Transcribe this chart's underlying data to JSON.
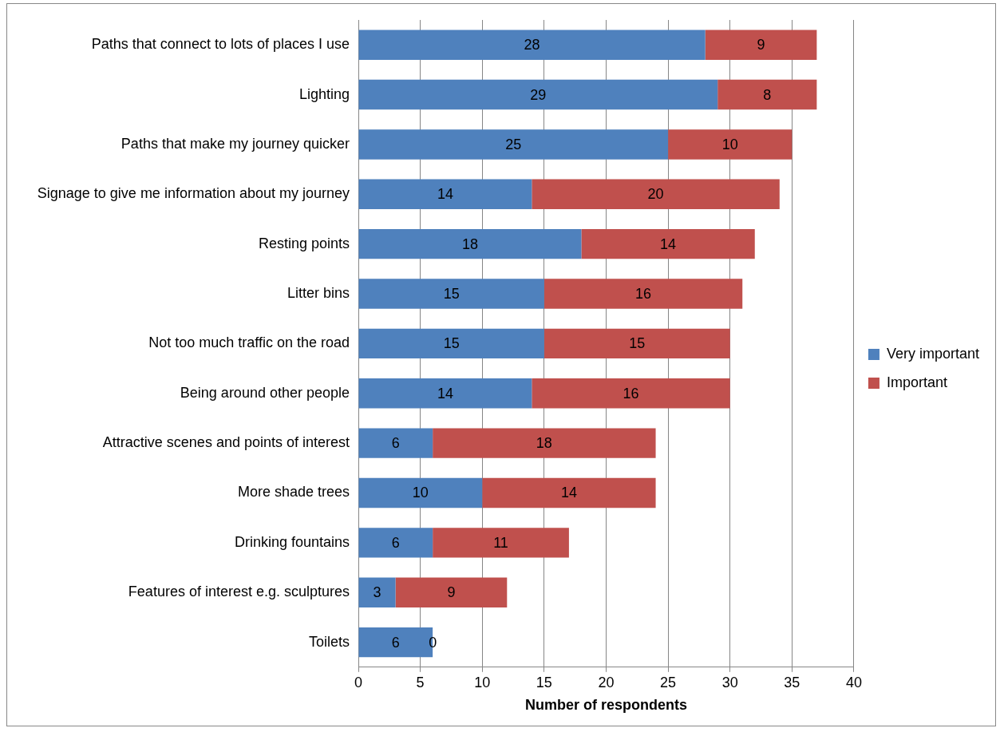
{
  "chart_data": {
    "type": "bar",
    "orientation": "horizontal",
    "stacked": true,
    "xlabel": "Number of respondents",
    "categories": [
      "Paths that connect to lots of places I use",
      "Lighting",
      "Paths that make my journey quicker",
      "Signage to give me information about my journey",
      "Resting points",
      "Litter bins",
      "Not too much traffic on the road",
      "Being around other people",
      "Attractive scenes and points of interest",
      "More shade trees",
      "Drinking fountains",
      "Features of interest e.g. sculptures",
      "Toilets"
    ],
    "series": [
      {
        "name": "Very important",
        "color": "#4f81bd",
        "values": [
          28,
          29,
          25,
          14,
          18,
          15,
          15,
          14,
          6,
          10,
          6,
          3,
          6
        ]
      },
      {
        "name": "Important",
        "color": "#c0504d",
        "values": [
          9,
          8,
          10,
          20,
          14,
          16,
          15,
          16,
          18,
          14,
          11,
          9,
          0
        ]
      }
    ],
    "xlim": [
      0,
      40
    ],
    "xticks": [
      0,
      5,
      10,
      15,
      20,
      25,
      30,
      35,
      40
    ],
    "grid": "x",
    "legend": "right",
    "data_labels": true
  }
}
